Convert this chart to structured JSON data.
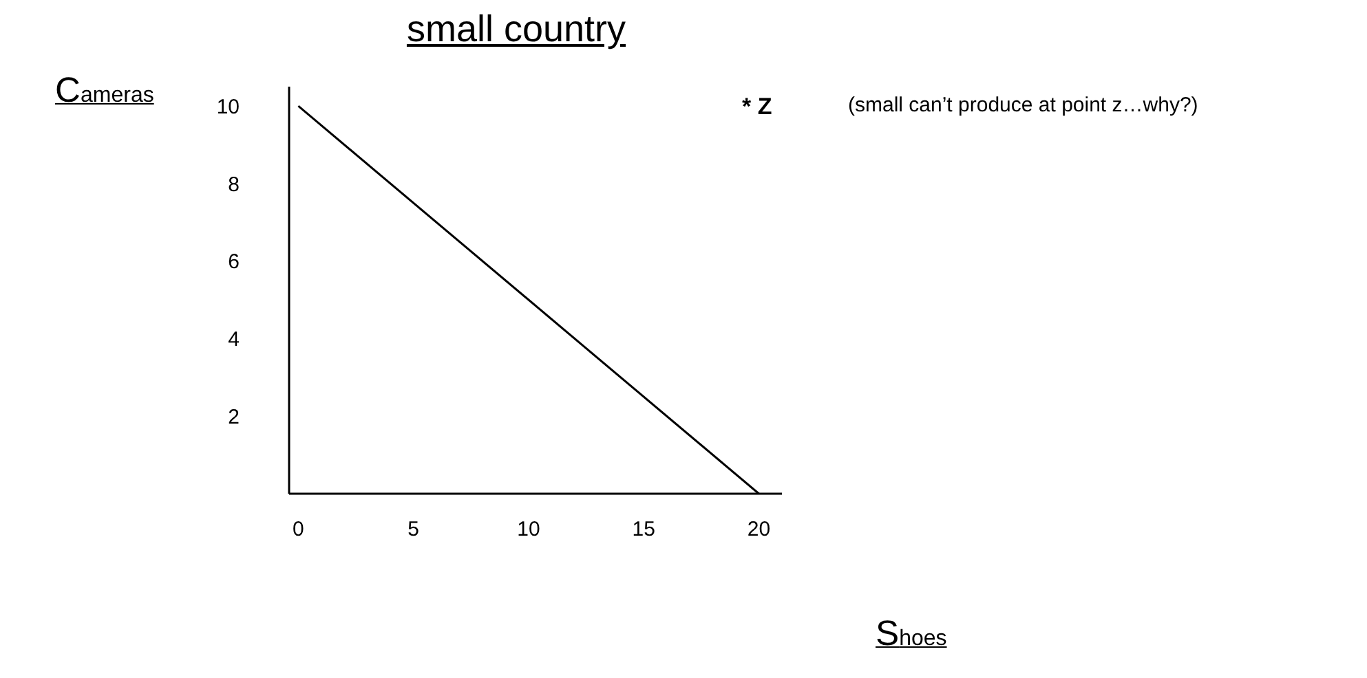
{
  "chart_data": {
    "type": "line",
    "title": "small country",
    "xlabel": "Shoes",
    "ylabel": "Cameras",
    "x": [
      0,
      20
    ],
    "series": [
      {
        "color": "#000000",
        "values": [
          10,
          0
        ]
      }
    ],
    "xlim": [
      -0.4,
      21
    ],
    "ylim": [
      0,
      10.5
    ],
    "xticks": [
      0,
      5,
      10,
      15,
      20
    ],
    "yticks": [
      2,
      4,
      6,
      8,
      10
    ],
    "grid": false,
    "legend": false,
    "marker": "none",
    "line_style": "solid",
    "annotations": [
      "* Z",
      "(small can’t produce at point z…why?)"
    ]
  }
}
